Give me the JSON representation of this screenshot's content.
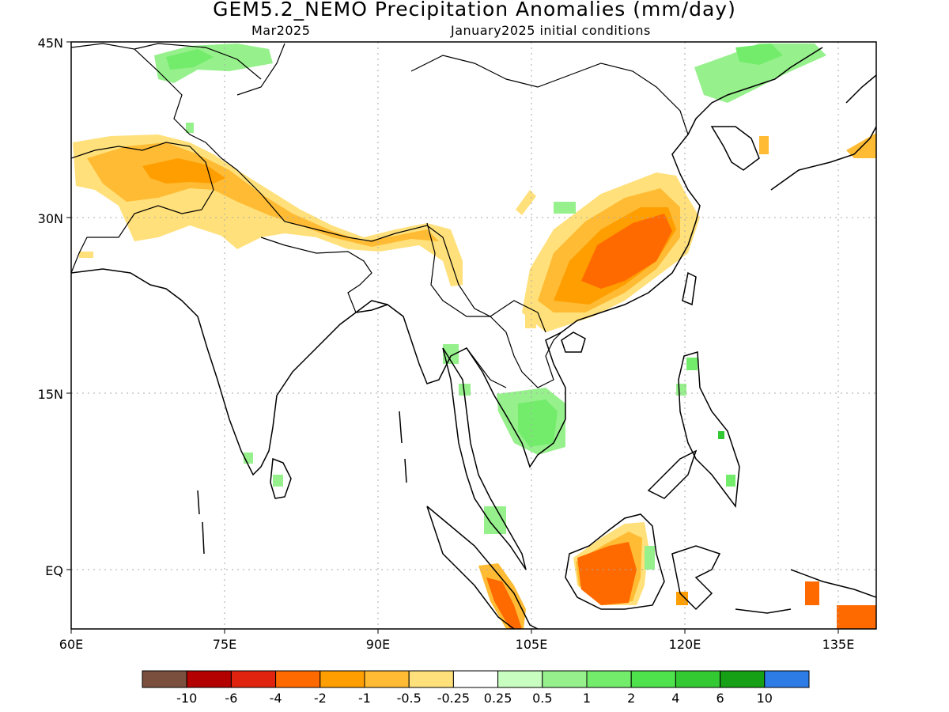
{
  "title": "GEM5.2_NEMO Precipitation Anomalies (mm/day)",
  "subtitle_left": "Mar2025",
  "subtitle_right": "January2025 initial conditions",
  "axes": {
    "lat_labels": [
      "45N",
      "30N",
      "15N",
      "EQ"
    ],
    "lon_labels": [
      "60E",
      "75E",
      "90E",
      "105E",
      "120E",
      "135E"
    ]
  },
  "colorbar": {
    "colors": [
      "#7a4f3d",
      "#b30000",
      "#e0230e",
      "#ff6a00",
      "#ff9e00",
      "#ffbb33",
      "#ffe07a",
      "#ffffff",
      "#c8ffc0",
      "#96f08c",
      "#73ec6c",
      "#4ee34c",
      "#33c933",
      "#15a015",
      "#2d7ce6"
    ],
    "labels": [
      "-10",
      "-6",
      "-4",
      "-2",
      "-1",
      "-0.5",
      "-0.25",
      "0.25",
      "0.5",
      "1",
      "2",
      "4",
      "6",
      "10"
    ]
  },
  "colors": {
    "grid": "#aaaaaa",
    "coast": "#000000"
  }
}
